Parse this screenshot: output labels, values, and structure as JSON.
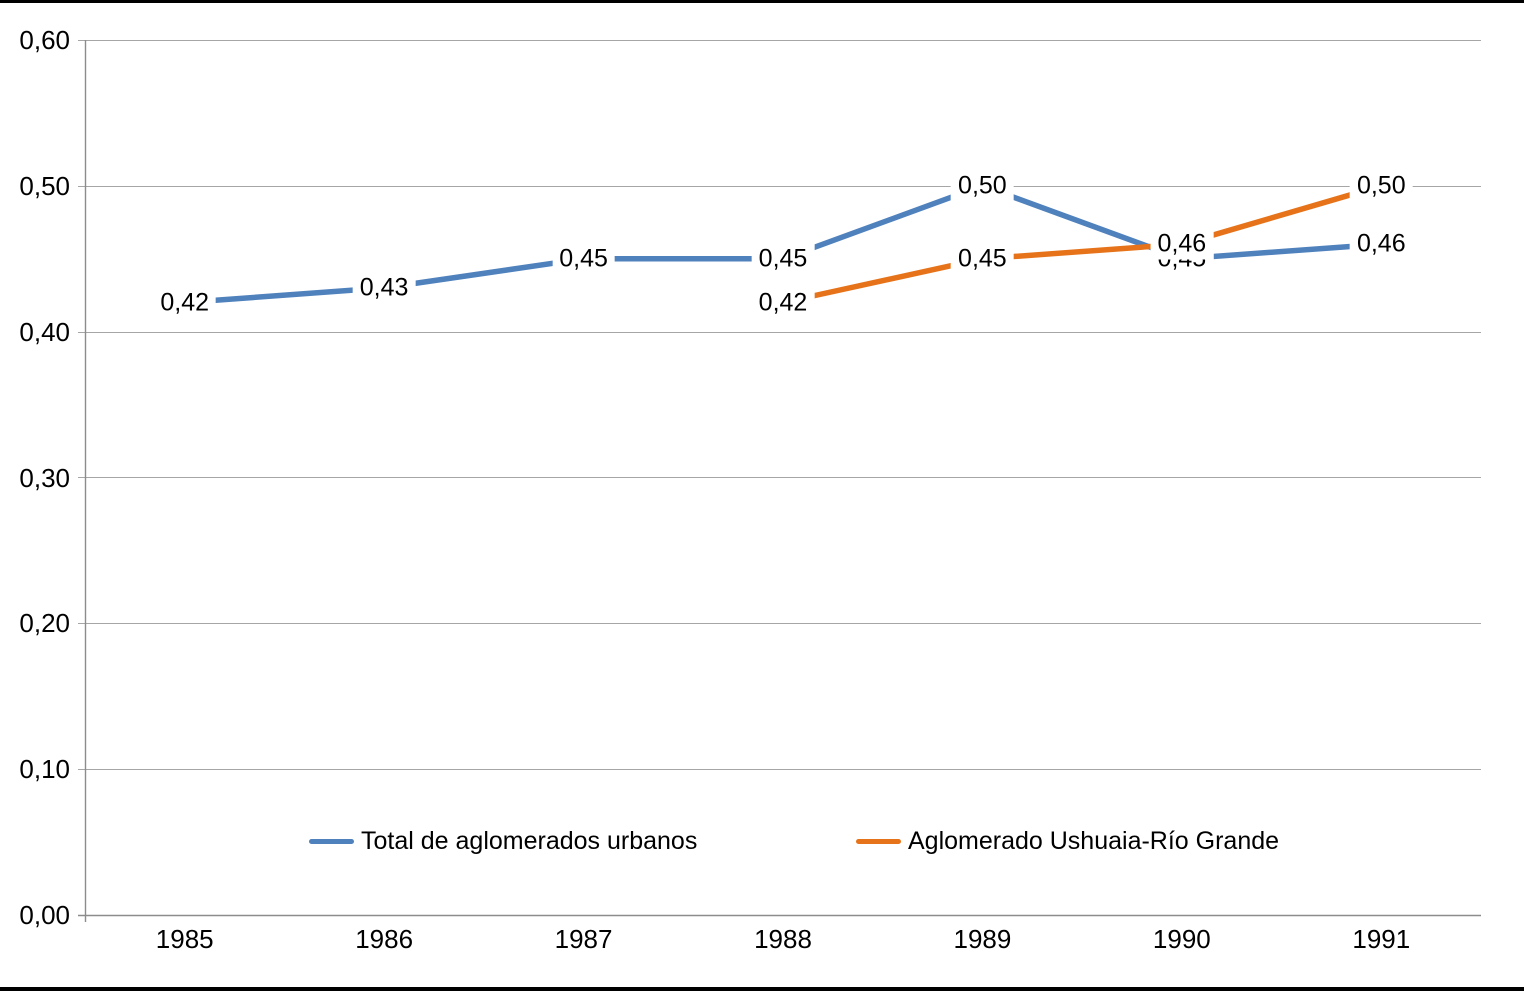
{
  "page": {
    "background_color": "#FFFFFF",
    "top_border_color": "#000000",
    "bottom_border_color": "#000000"
  },
  "chart_data": {
    "type": "line",
    "title": "",
    "xlabel": "",
    "ylabel": "",
    "categories": [
      "1985",
      "1986",
      "1987",
      "1988",
      "1989",
      "1990",
      "1991"
    ],
    "series": [
      {
        "name": "Total de aglomerados urbanos",
        "color": "#4F81BD",
        "values": [
          0.42,
          0.43,
          0.45,
          0.45,
          0.5,
          0.45,
          0.46
        ],
        "point_labels": [
          "0,42",
          "0,43",
          "0,45",
          "0,45",
          "0,50",
          "0,45",
          "0,46"
        ]
      },
      {
        "name": "Aglomerado Ushuaia-Río Grande",
        "color": "#E67319",
        "values": [
          null,
          null,
          null,
          0.42,
          0.45,
          0.46,
          0.5
        ],
        "point_labels": [
          null,
          null,
          null,
          "0,42",
          "0,45",
          "0,46",
          "0,50"
        ]
      }
    ],
    "ylim": [
      0,
      0.6
    ],
    "ytick_interval": 0.1,
    "ytick_labels": [
      "0,00",
      "0,10",
      "0,20",
      "0,30",
      "0,40",
      "0,50",
      "0,60"
    ],
    "decimal_separator": ",",
    "grid": true,
    "gridline_color": "#A6A6A6",
    "axis_color": "#8C8C8C",
    "legend_position": "bottom-inside",
    "legend_labels": [
      "Total de aglomerados urbanos",
      "Aglomerado Ushuaia-Río Grande"
    ]
  }
}
